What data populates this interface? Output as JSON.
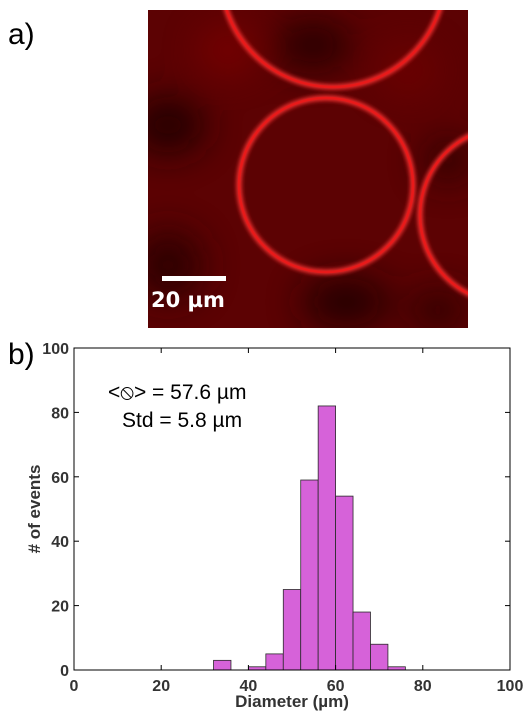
{
  "panel_a": {
    "label": "a)",
    "scale_bar_label": "20 µm"
  },
  "panel_b": {
    "label": "b)",
    "annotation_line1": "<⦸> = 57.6 µm",
    "annotation_line2": "Std = 5.8 µm"
  },
  "colors": {
    "bar_fill": "#d662d9",
    "bar_stroke": "#2a2a2a",
    "micrograph_ring": "#e01818",
    "micrograph_background": "#5a0000"
  },
  "chart_data": {
    "type": "bar",
    "xlabel": "Diameter (µm)",
    "ylabel": "# of events",
    "xlim": [
      0,
      100
    ],
    "ylim": [
      0,
      100
    ],
    "xticks": [
      0,
      20,
      40,
      60,
      80,
      100
    ],
    "yticks": [
      0,
      20,
      40,
      60,
      80,
      100
    ],
    "bin_width": 4,
    "bin_starts": [
      32,
      36,
      40,
      44,
      48,
      52,
      56,
      60,
      64,
      68,
      72
    ],
    "values": [
      3,
      0,
      1,
      5,
      25,
      59,
      82,
      54,
      18,
      8,
      1
    ]
  }
}
